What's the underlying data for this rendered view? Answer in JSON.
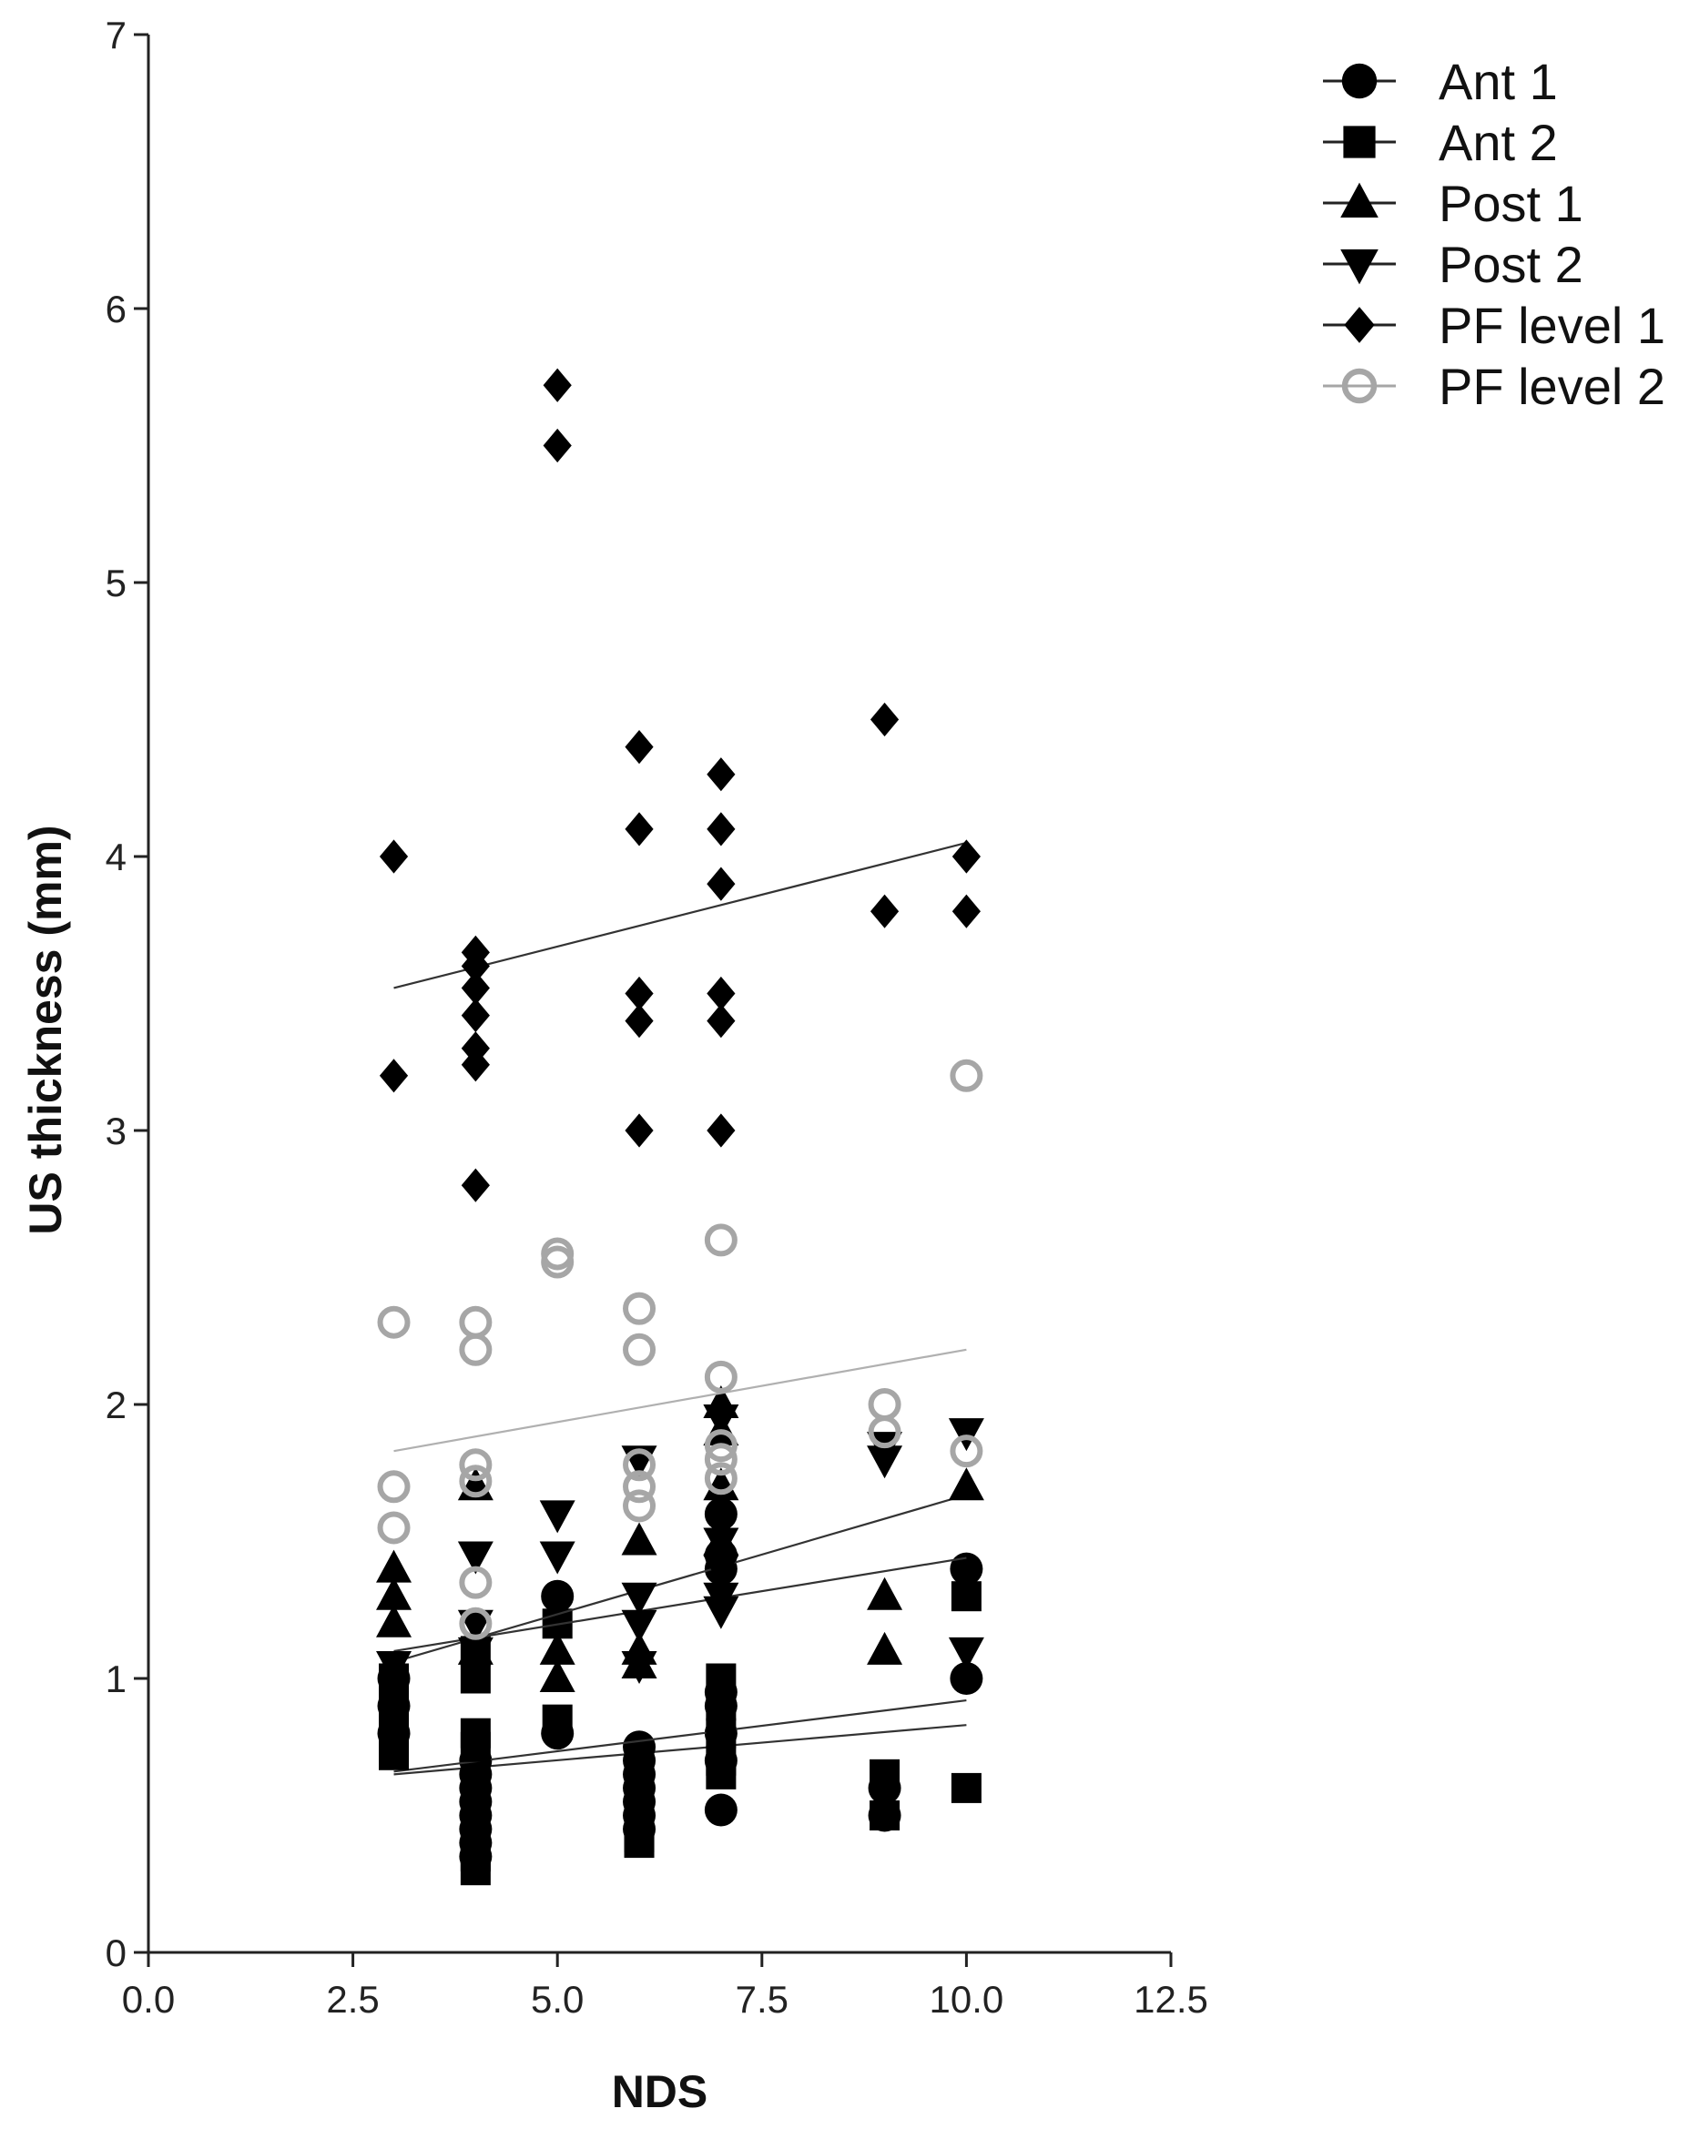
{
  "chart_data": {
    "type": "scatter",
    "title": "",
    "xlabel": "NDS",
    "ylabel": "US thickness (mm)",
    "xlim": [
      0,
      12.5
    ],
    "ylim": [
      0,
      7
    ],
    "xticks": [
      "0.0",
      "2.5",
      "5.0",
      "7.5",
      "10.0",
      "12.5"
    ],
    "yticks": [
      "0",
      "1",
      "2",
      "3",
      "4",
      "5",
      "6",
      "7"
    ],
    "legend_position": "top-right",
    "series": [
      {
        "name": "Ant 1",
        "marker": "circle",
        "color": "#000000",
        "points": [
          [
            3,
            1.0
          ],
          [
            3,
            0.9
          ],
          [
            3,
            0.8
          ],
          [
            4,
            0.7
          ],
          [
            4,
            0.65
          ],
          [
            4,
            0.6
          ],
          [
            4,
            0.55
          ],
          [
            4,
            0.5
          ],
          [
            4,
            0.45
          ],
          [
            4,
            0.4
          ],
          [
            4,
            0.35
          ],
          [
            5,
            1.3
          ],
          [
            5,
            0.8
          ],
          [
            6,
            0.75
          ],
          [
            6,
            0.7
          ],
          [
            6,
            0.65
          ],
          [
            6,
            0.6
          ],
          [
            6,
            0.55
          ],
          [
            6,
            0.5
          ],
          [
            6,
            0.45
          ],
          [
            7,
            1.6
          ],
          [
            7,
            1.45
          ],
          [
            7,
            1.4
          ],
          [
            7,
            0.95
          ],
          [
            7,
            0.9
          ],
          [
            7,
            0.8
          ],
          [
            7,
            0.7
          ],
          [
            7,
            0.52
          ],
          [
            9,
            0.6
          ],
          [
            9,
            0.5
          ],
          [
            10,
            1.4
          ],
          [
            10,
            1.0
          ]
        ],
        "trend": [
          [
            3,
            0.65
          ],
          [
            10,
            0.83
          ]
        ]
      },
      {
        "name": "Ant 2",
        "marker": "square",
        "color": "#000000",
        "points": [
          [
            3,
            1.0
          ],
          [
            3,
            0.95
          ],
          [
            3,
            0.9
          ],
          [
            3,
            0.85
          ],
          [
            3,
            0.8
          ],
          [
            3,
            0.75
          ],
          [
            3,
            0.72
          ],
          [
            4,
            1.1
          ],
          [
            4,
            1.0
          ],
          [
            4,
            0.8
          ],
          [
            4,
            0.75
          ],
          [
            4,
            0.4
          ],
          [
            4,
            0.35
          ],
          [
            4,
            0.3
          ],
          [
            5,
            1.2
          ],
          [
            5,
            0.85
          ],
          [
            6,
            0.7
          ],
          [
            6,
            0.6
          ],
          [
            6,
            0.5
          ],
          [
            6,
            0.42
          ],
          [
            6,
            0.4
          ],
          [
            7,
            1.0
          ],
          [
            7,
            0.9
          ],
          [
            7,
            0.8
          ],
          [
            7,
            0.7
          ],
          [
            7,
            0.65
          ],
          [
            9,
            0.65
          ],
          [
            9,
            0.5
          ],
          [
            10,
            1.3
          ],
          [
            10,
            0.6
          ]
        ],
        "trend": [
          [
            3,
            0.66
          ],
          [
            10,
            0.92
          ]
        ]
      },
      {
        "name": "Post 1",
        "marker": "triangle-up",
        "color": "#000000",
        "points": [
          [
            3,
            1.4
          ],
          [
            3,
            1.3
          ],
          [
            3,
            1.2
          ],
          [
            4,
            1.7
          ],
          [
            4,
            1.1
          ],
          [
            5,
            1.1
          ],
          [
            5,
            1.0
          ],
          [
            6,
            1.5
          ],
          [
            6,
            1.1
          ],
          [
            6,
            1.05
          ],
          [
            7,
            2.0
          ],
          [
            7,
            1.9
          ],
          [
            7,
            1.7
          ],
          [
            7,
            1.5
          ],
          [
            9,
            1.3
          ],
          [
            9,
            1.1
          ],
          [
            10,
            1.7
          ]
        ],
        "trend": [
          [
            3,
            1.06
          ],
          [
            10,
            1.67
          ]
        ]
      },
      {
        "name": "Post 2",
        "marker": "triangle-down",
        "color": "#000000",
        "points": [
          [
            3,
            1.05
          ],
          [
            4,
            1.45
          ],
          [
            4,
            1.2
          ],
          [
            4,
            1.1
          ],
          [
            5,
            1.6
          ],
          [
            5,
            1.45
          ],
          [
            6,
            1.8
          ],
          [
            6,
            1.3
          ],
          [
            6,
            1.2
          ],
          [
            6,
            1.05
          ],
          [
            7,
            1.95
          ],
          [
            7,
            1.5
          ],
          [
            7,
            1.4
          ],
          [
            7,
            1.3
          ],
          [
            7,
            1.25
          ],
          [
            9,
            1.85
          ],
          [
            9,
            1.8
          ],
          [
            10,
            1.9
          ],
          [
            10,
            1.1
          ]
        ],
        "trend": [
          [
            3,
            1.1
          ],
          [
            10,
            1.44
          ]
        ]
      },
      {
        "name": "PF level 1",
        "marker": "diamond",
        "color": "#000000",
        "points": [
          [
            3,
            4.0
          ],
          [
            3,
            3.2
          ],
          [
            4,
            3.65
          ],
          [
            4,
            3.6
          ],
          [
            4,
            3.52
          ],
          [
            4,
            3.42
          ],
          [
            4,
            3.3
          ],
          [
            4,
            3.24
          ],
          [
            4,
            2.8
          ],
          [
            5,
            5.72
          ],
          [
            5,
            5.5
          ],
          [
            6,
            4.4
          ],
          [
            6,
            4.1
          ],
          [
            6,
            3.5
          ],
          [
            6,
            3.4
          ],
          [
            6,
            3.0
          ],
          [
            7,
            4.3
          ],
          [
            7,
            4.1
          ],
          [
            7,
            3.9
          ],
          [
            7,
            3.5
          ],
          [
            7,
            3.4
          ],
          [
            7,
            3.0
          ],
          [
            9,
            4.5
          ],
          [
            9,
            3.8
          ],
          [
            10,
            4.0
          ],
          [
            10,
            3.8
          ]
        ],
        "trend": [
          [
            3,
            3.52
          ],
          [
            10,
            4.05
          ]
        ]
      },
      {
        "name": "PF level 2",
        "marker": "open-circle",
        "color": "#a6a6a6",
        "points": [
          [
            3,
            2.3
          ],
          [
            3,
            1.7
          ],
          [
            3,
            1.55
          ],
          [
            4,
            2.3
          ],
          [
            4,
            2.2
          ],
          [
            4,
            1.78
          ],
          [
            4,
            1.72
          ],
          [
            4,
            1.35
          ],
          [
            4,
            1.2
          ],
          [
            5,
            2.55
          ],
          [
            5,
            2.52
          ],
          [
            6,
            2.35
          ],
          [
            6,
            2.2
          ],
          [
            6,
            1.78
          ],
          [
            6,
            1.7
          ],
          [
            6,
            1.63
          ],
          [
            7,
            2.6
          ],
          [
            7,
            2.1
          ],
          [
            7,
            1.85
          ],
          [
            7,
            1.8
          ],
          [
            7,
            1.73
          ],
          [
            9,
            2.0
          ],
          [
            9,
            1.9
          ],
          [
            10,
            3.2
          ],
          [
            10,
            1.83
          ]
        ],
        "trend": [
          [
            3,
            1.83
          ],
          [
            10,
            2.2
          ]
        ]
      }
    ]
  }
}
